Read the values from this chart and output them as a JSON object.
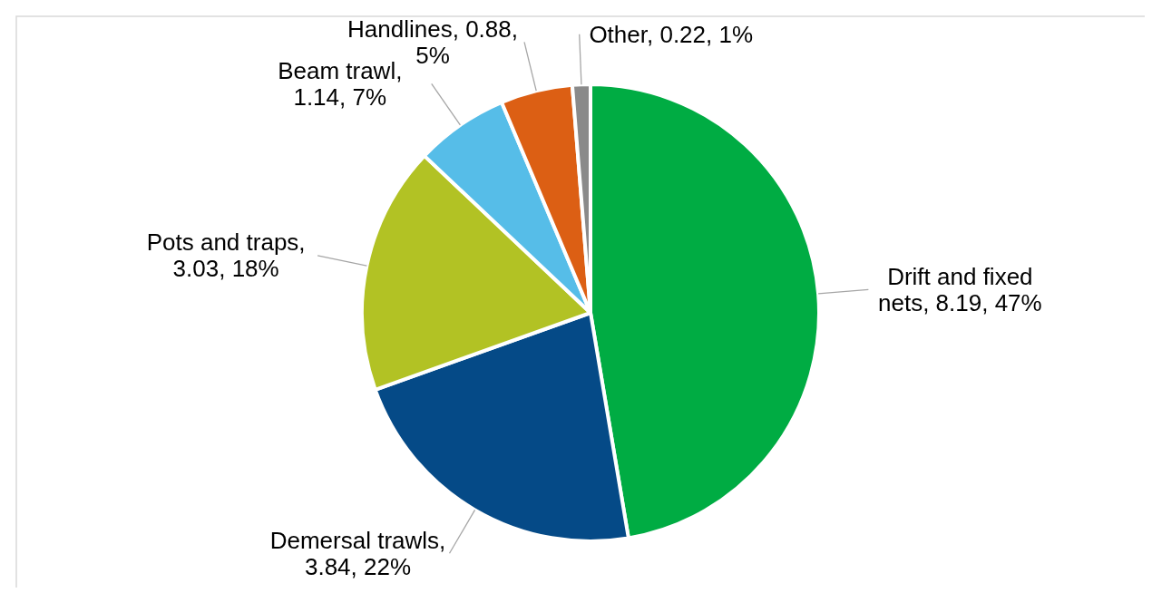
{
  "chart_data": {
    "type": "pie",
    "categories": [
      "Drift and fixed nets",
      "Demersal trawls",
      "Pots and traps",
      "Beam trawl",
      "Handlines",
      "Other"
    ],
    "values": [
      8.19,
      3.84,
      3.03,
      1.14,
      0.88,
      0.22
    ],
    "value_labels": [
      ", 8.19, 47%",
      ", 3.84, 22%",
      ", 3.03, 18%",
      ", 1.14, 7%",
      ", 0.88, 5%",
      ", 0.22, 1%"
    ],
    "colors": [
      "#00ac43",
      "#054a87",
      "#b2c224",
      "#56bde8",
      "#dc5f14",
      "#8a8a8a"
    ]
  }
}
